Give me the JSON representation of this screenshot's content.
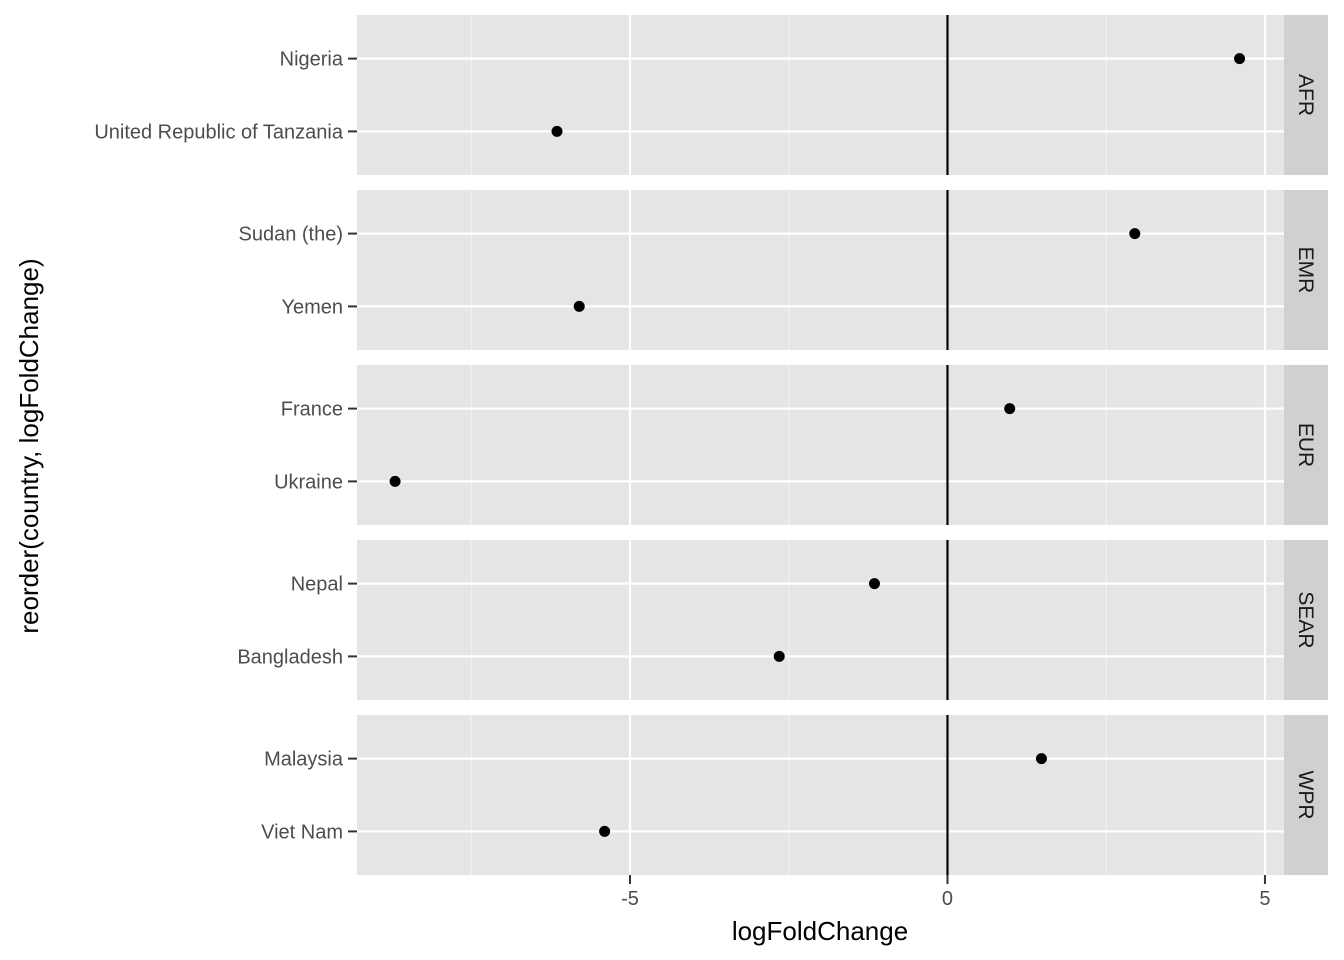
{
  "chart_data": {
    "type": "scatter",
    "xlabel": "logFoldChange",
    "ylabel": "reorder(country, logFoldChange)",
    "xlim": [
      -9.3,
      5.3
    ],
    "x_ticks": [
      -5,
      0,
      5
    ],
    "x_tick_labels": [
      "-5",
      "0",
      "5"
    ],
    "vline": 0,
    "grid": true,
    "facets": [
      {
        "name": "AFR",
        "points": [
          {
            "country": "Nigeria",
            "value": 4.6
          },
          {
            "country": "United Republic of Tanzania",
            "value": -6.15
          }
        ]
      },
      {
        "name": "EMR",
        "points": [
          {
            "country": "Sudan (the)",
            "value": 2.95
          },
          {
            "country": "Yemen",
            "value": -5.8
          }
        ]
      },
      {
        "name": "EUR",
        "points": [
          {
            "country": "France",
            "value": 0.98
          },
          {
            "country": "Ukraine",
            "value": -8.7
          }
        ]
      },
      {
        "name": "SEAR",
        "points": [
          {
            "country": "Nepal",
            "value": -1.15
          },
          {
            "country": "Bangladesh",
            "value": -2.65
          }
        ]
      },
      {
        "name": "WPR",
        "points": [
          {
            "country": "Malaysia",
            "value": 1.48
          },
          {
            "country": "Viet Nam",
            "value": -5.4
          }
        ]
      }
    ]
  }
}
